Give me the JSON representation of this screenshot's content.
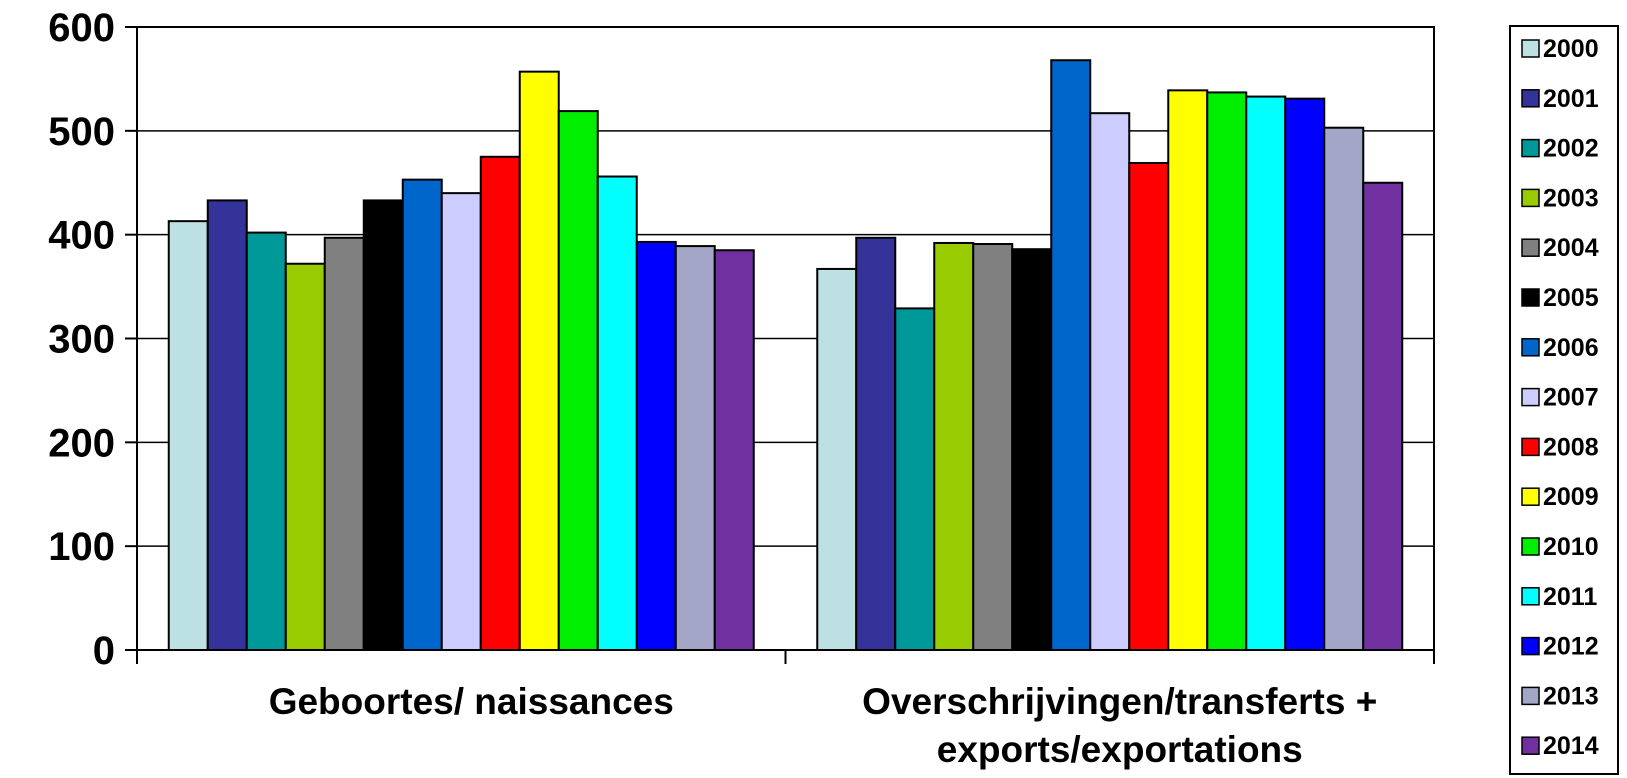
{
  "chart_data": {
    "type": "bar",
    "categories": [
      [
        "Geboortes/ naissances"
      ],
      [
        "Overschrijvingen/transferts +",
        "exports/exportations"
      ]
    ],
    "ylim": [
      0,
      600
    ],
    "yticks": [
      0,
      100,
      200,
      300,
      400,
      500,
      600
    ],
    "grid": true,
    "legend_position": "right",
    "series": [
      {
        "name": "2000",
        "color": "#bde0e3",
        "values": [
          413,
          367
        ]
      },
      {
        "name": "2001",
        "color": "#333399",
        "values": [
          433,
          397
        ]
      },
      {
        "name": "2002",
        "color": "#009999",
        "values": [
          402,
          329
        ]
      },
      {
        "name": "2003",
        "color": "#99cc00",
        "values": [
          372,
          392
        ]
      },
      {
        "name": "2004",
        "color": "#808080",
        "values": [
          397,
          391
        ]
      },
      {
        "name": "2005",
        "color": "#000000",
        "values": [
          433,
          386
        ]
      },
      {
        "name": "2006",
        "color": "#0066cc",
        "values": [
          453,
          568
        ]
      },
      {
        "name": "2007",
        "color": "#ccccff",
        "values": [
          440,
          517
        ]
      },
      {
        "name": "2008",
        "color": "#ff0000",
        "values": [
          475,
          469
        ]
      },
      {
        "name": "2009",
        "color": "#ffff00",
        "values": [
          557,
          539
        ]
      },
      {
        "name": "2010",
        "color": "#00ee00",
        "values": [
          519,
          537
        ]
      },
      {
        "name": "2011",
        "color": "#00ffff",
        "values": [
          456,
          533
        ]
      },
      {
        "name": "2012",
        "color": "#0000ff",
        "values": [
          393,
          531
        ]
      },
      {
        "name": "2013",
        "color": "#a3a6c6",
        "values": [
          389,
          503
        ]
      },
      {
        "name": "2014",
        "color": "#7030a0",
        "values": [
          385,
          450
        ]
      }
    ]
  }
}
